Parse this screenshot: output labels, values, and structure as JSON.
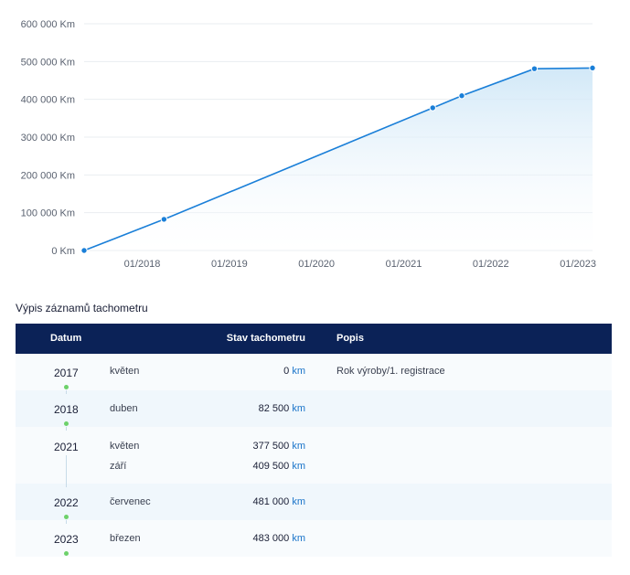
{
  "chart_data": {
    "type": "area",
    "x": [
      "2017-05",
      "2018-04",
      "2021-05",
      "2021-09",
      "2022-07",
      "2023-03"
    ],
    "values": [
      0,
      82500,
      377500,
      409500,
      481000,
      483000
    ],
    "y_ticks": [
      "0 Km",
      "100 000 Km",
      "200 000 Km",
      "300 000 Km",
      "400 000 Km",
      "500 000 Km",
      "600 000 Km"
    ],
    "x_ticks": [
      "01/2018",
      "01/2019",
      "01/2020",
      "01/2021",
      "01/2022",
      "01/2023"
    ],
    "ylim": [
      0,
      600000
    ],
    "xlim": [
      "2017-05",
      "2023-03"
    ],
    "grid": true,
    "line_color": "#1a7fd8",
    "fill_color": "#d6ebf8"
  },
  "table": {
    "title": "Výpis záznamů tachometru",
    "headers": {
      "date": "Datum",
      "odometer": "Stav tachometru",
      "description": "Popis"
    },
    "groups": [
      {
        "year": "2017",
        "entries": [
          {
            "month": "květen",
            "value": "0",
            "unit": "km",
            "description": "Rok výroby/1. registrace"
          }
        ]
      },
      {
        "year": "2018",
        "entries": [
          {
            "month": "duben",
            "value": "82 500",
            "unit": "km",
            "description": ""
          }
        ]
      },
      {
        "year": "2021",
        "entries": [
          {
            "month": "květen",
            "value": "377 500",
            "unit": "km",
            "description": ""
          },
          {
            "month": "září",
            "value": "409 500",
            "unit": "km",
            "description": ""
          }
        ]
      },
      {
        "year": "2022",
        "entries": [
          {
            "month": "červenec",
            "value": "481 000",
            "unit": "km",
            "description": ""
          }
        ]
      },
      {
        "year": "2023",
        "entries": [
          {
            "month": "březen",
            "value": "483 000",
            "unit": "km",
            "description": ""
          }
        ]
      }
    ],
    "timeline_dot_color": "#6dd16a"
  }
}
